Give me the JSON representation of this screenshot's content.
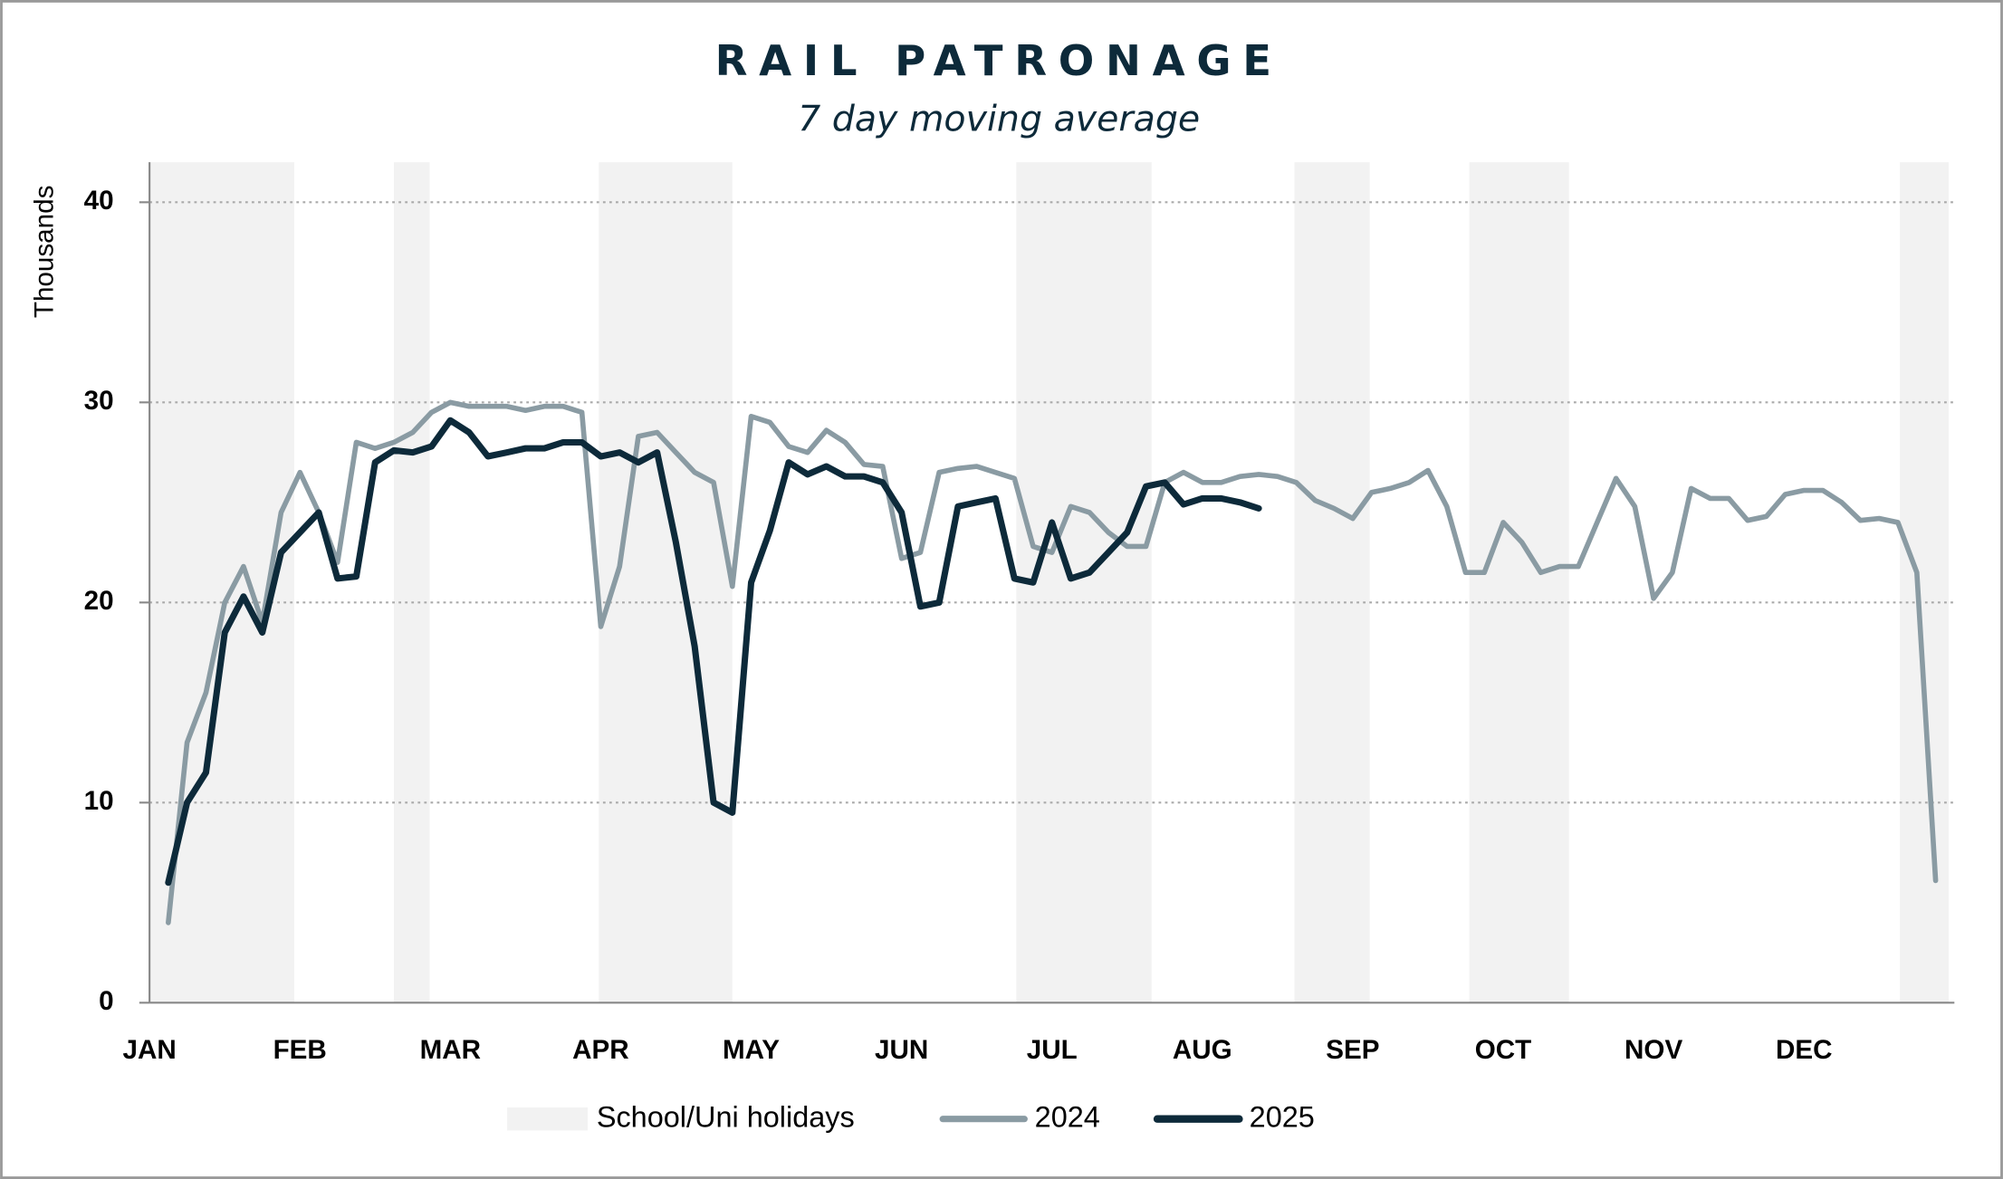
{
  "chart_data": {
    "type": "line",
    "title": "RAIL PATRONAGE",
    "subtitle": "7 day moving average",
    "y_label": "Thousands",
    "categories": [
      "JAN",
      null,
      null,
      null,
      null,
      null,
      null,
      null,
      "FEB",
      null,
      null,
      null,
      null,
      null,
      null,
      null,
      "MAR",
      null,
      null,
      null,
      null,
      null,
      null,
      null,
      "APR",
      null,
      null,
      null,
      null,
      null,
      null,
      null,
      "MAY",
      null,
      null,
      null,
      null,
      null,
      null,
      null,
      "JUN",
      null,
      null,
      null,
      null,
      null,
      null,
      null,
      "JUL",
      null,
      null,
      null,
      null,
      null,
      null,
      null,
      "AUG",
      null,
      null,
      null,
      null,
      null,
      null,
      null,
      "SEP",
      null,
      null,
      null,
      null,
      null,
      null,
      null,
      "OCT",
      null,
      null,
      null,
      null,
      null,
      null,
      null,
      "NOV",
      null,
      null,
      null,
      null,
      null,
      null,
      null,
      "DEC",
      null,
      null,
      null,
      null,
      null,
      null,
      null
    ],
    "series": [
      {
        "name": "2024",
        "color": "#8a9ba3",
        "values": [
          null,
          4,
          13,
          15.5,
          20,
          21.8,
          19,
          24.5,
          26.5,
          24.5,
          22,
          28,
          27.7,
          28,
          28.5,
          29.5,
          30,
          29.8,
          29.8,
          29.8,
          29.6,
          29.8,
          29.8,
          29.5,
          18.8,
          21.8,
          28.3,
          28.5,
          27.5,
          26.5,
          26,
          20.8,
          29.3,
          29,
          27.8,
          27.5,
          28.6,
          28,
          26.9,
          26.8,
          22.2,
          22.5,
          26.5,
          26.7,
          26.8,
          26.5,
          26.2,
          22.8,
          22.5,
          24.8,
          24.5,
          23.5,
          22.8,
          22.8,
          26,
          26.5,
          26,
          26,
          26.3,
          26.4,
          26.3,
          26,
          25.1,
          24.7,
          24.2,
          25.5,
          25.7,
          26,
          26.6,
          24.8,
          21.5,
          21.5,
          24,
          23,
          21.5,
          21.8,
          21.8,
          24,
          26.2,
          24.8,
          20.2,
          21.5,
          25.7,
          25.2,
          25.2,
          24.1,
          24.3,
          25.4,
          25.6,
          25.6,
          25,
          24.1,
          24.2,
          24,
          21.5,
          6.1
        ]
      },
      {
        "name": "2025",
        "color": "#0d2a3a",
        "values": [
          null,
          6,
          10,
          11.5,
          18.5,
          20.3,
          18.5,
          22.5,
          23.5,
          24.5,
          21.2,
          21.3,
          27,
          27.6,
          27.5,
          27.8,
          29.1,
          28.5,
          27.3,
          27.5,
          27.7,
          27.7,
          28,
          28,
          27.3,
          27.5,
          27,
          27.5,
          23,
          17.8,
          10,
          9.5,
          21,
          23.6,
          27,
          26.4,
          26.8,
          26.3,
          26.3,
          26,
          24.5,
          19.8,
          20,
          24.8,
          25,
          25.2,
          21.2,
          21,
          24,
          21.2,
          21.5,
          22.5,
          23.5,
          25.8,
          26,
          24.9,
          25.2,
          25.2,
          25,
          24.7,
          null,
          null,
          null,
          null,
          null,
          null,
          null,
          null,
          null,
          null,
          null,
          null,
          null,
          null,
          null,
          null,
          null,
          null,
          null,
          null,
          null,
          null,
          null,
          null,
          null,
          null,
          null,
          null,
          null,
          null,
          null,
          null,
          null,
          null,
          null,
          null
        ]
      }
    ],
    "holidays": {
      "name": "School/Uni holidays",
      "color": "#f2f2f2",
      "ranges": [
        [
          0,
          7.7
        ],
        [
          13,
          14.9
        ],
        [
          23.9,
          31
        ],
        [
          46.1,
          53.3
        ],
        [
          60.9,
          64.9
        ],
        [
          70.2,
          75.5
        ],
        [
          93.1,
          95.7
        ]
      ]
    },
    "ylim": [
      0,
      42
    ],
    "yticks": [
      0,
      10,
      20,
      30,
      40
    ],
    "grid": true
  }
}
